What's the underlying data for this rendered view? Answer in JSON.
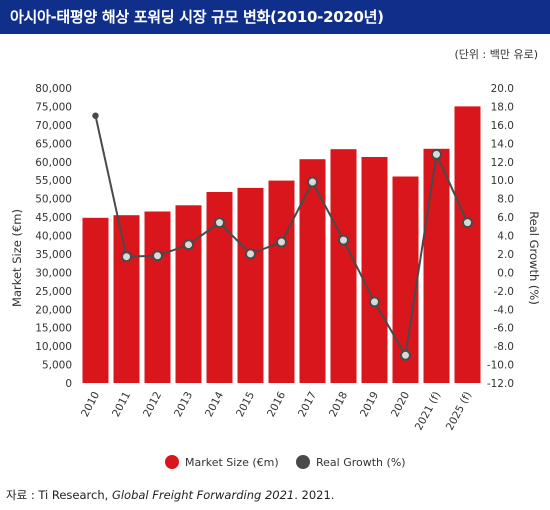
{
  "header": {
    "title": "아시아-태평양 해상 포워딩 시장 규모 변화(2010-2020년)",
    "unit": "(단위 : 백만 유로)"
  },
  "source": {
    "prefix": "자료 : Ti Research, ",
    "italic": "Global Freight Forwarding 2021",
    "suffix": ". 2021."
  },
  "colors": {
    "bar": "#d9161c",
    "line": "#4a4a4a",
    "marker_fill": "#d9d9d9",
    "header_bg": "#0f2f8a"
  },
  "chart_data": {
    "type": "bar",
    "title": "아시아-태평양 해상 포워딩 시장 규모 변화(2010-2020년)",
    "categories": [
      "2010",
      "2011",
      "2012",
      "2013",
      "2014",
      "2015",
      "2016",
      "2017",
      "2018",
      "2019",
      "2020",
      "2021 (f)",
      "2025 (f)"
    ],
    "series": [
      {
        "name": "Market Size (€m)",
        "type": "bar",
        "axis": "left",
        "values": [
          44800,
          45500,
          46500,
          48200,
          51800,
          52900,
          54900,
          60700,
          63400,
          61300,
          56000,
          63500,
          75000
        ]
      },
      {
        "name": "Real Growth (%)",
        "type": "line",
        "axis": "right",
        "values": [
          17.0,
          1.7,
          1.8,
          3.0,
          5.4,
          2.0,
          3.3,
          9.8,
          3.5,
          -3.2,
          -9.0,
          12.8,
          5.4
        ]
      }
    ],
    "ylabel": "Market Size (€m)",
    "y2label": "Real Growth (%)",
    "ylim": [
      0,
      80000
    ],
    "y2lim": [
      -12,
      20
    ],
    "yticks": [
      "80,000",
      "75,000",
      "70,000",
      "65,000",
      "60,000",
      "55,000",
      "50,000",
      "45,000",
      "40,000",
      "35,000",
      "30,000",
      "25,000",
      "20,000",
      "15,000",
      "10,000",
      "5,000",
      "0"
    ],
    "y2ticks": [
      "20.0",
      "18.0",
      "16.0",
      "14.0",
      "12.0",
      "10.0",
      "8.0",
      "6.0",
      "4.0",
      "2.0",
      "0.0",
      "-2.0",
      "-4.0",
      "-6.0",
      "-8.0",
      "-10.0",
      "-12.0"
    ],
    "legend": [
      "Market Size (€m)",
      "Real Growth (%)"
    ],
    "legend_position": "bottom",
    "grid": false
  }
}
